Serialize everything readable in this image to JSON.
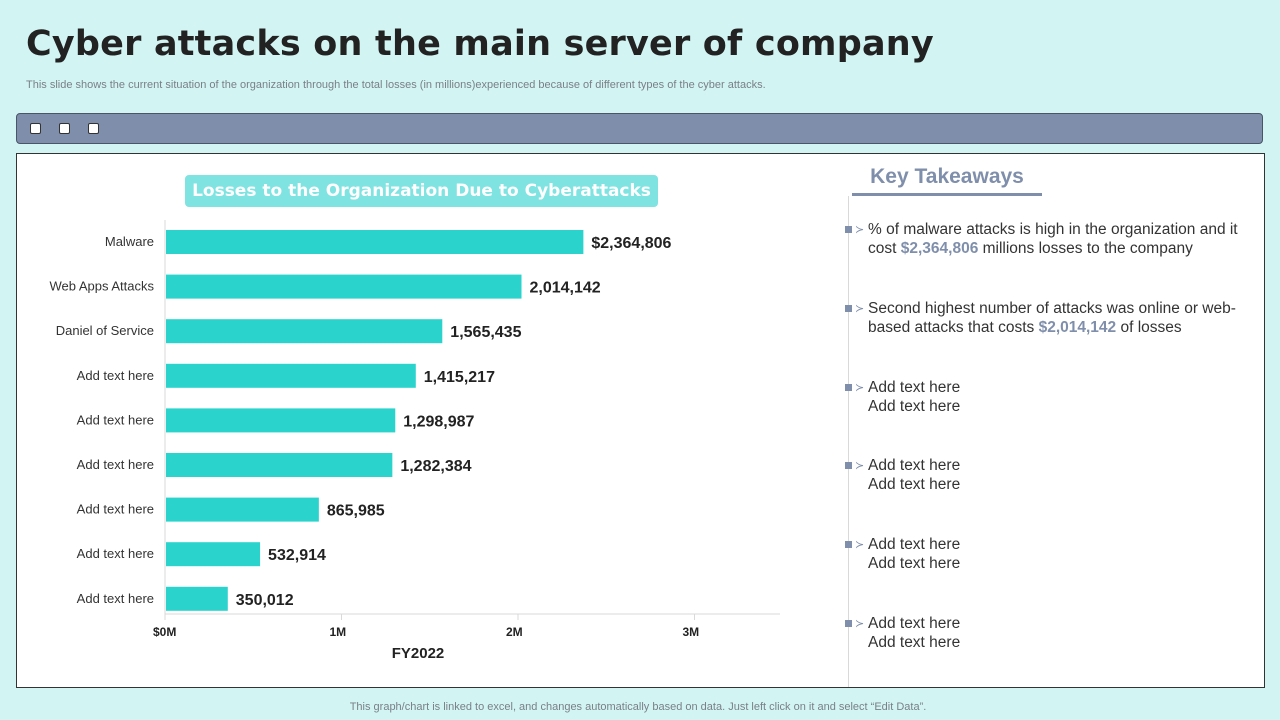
{
  "page": {
    "title": "Cyber attacks on the main server of company",
    "subtitle": "This slide shows the current situation of the organization through the total losses (in millions)experienced because of different types of the cyber attacks.",
    "footer": "This graph/chart is linked to excel,  and changes automatically based on data. Just left click on it and select “Edit Data”."
  },
  "colors": {
    "background": "#d2f5f4",
    "bar": "#2ad3cc",
    "accent": "#7f8fab",
    "chart_title_bg": "#7ee3e1"
  },
  "chart_data": {
    "type": "bar",
    "orientation": "horizontal",
    "title": "Losses to the Organization Due to Cyberattacks",
    "xlabel": "FY2022",
    "ylabel": "",
    "categories": [
      "Malware",
      "Web Apps Attacks",
      "Daniel of Service",
      "Add text here",
      "Add text here",
      "Add text here",
      "Add text here",
      "Add text here",
      "Add text here"
    ],
    "values": [
      2364806,
      2014142,
      1565435,
      1415217,
      1298987,
      1282384,
      865985,
      532914,
      350012
    ],
    "data_labels": [
      "$2,364,806",
      "2,014,142",
      "1,565,435",
      "1,415,217",
      "1,298,987",
      "1,282,384",
      "865,985",
      "532,914",
      "350,012"
    ],
    "xlim": [
      0,
      3500000
    ],
    "xticks": [
      0,
      1000000,
      2000000,
      3000000
    ],
    "xtick_labels": [
      "$0M",
      "1M",
      "2M",
      "3M"
    ],
    "grid": false,
    "legend": "none"
  },
  "takeaways": {
    "title": "Key Takeaways",
    "items": [
      {
        "pre": "% of malware attacks is high in the organization and it cost ",
        "highlight": "$2,364,806",
        "post": " millions losses to the company"
      },
      {
        "pre": "Second highest number  of attacks was online or web-based attacks that  costs ",
        "highlight": "$2,014,142",
        "post": " of losses"
      },
      {
        "line1": "Add text here",
        "line2": "Add text here"
      },
      {
        "line1": "Add text here",
        "line2": "Add text here"
      },
      {
        "line1": "Add text here",
        "line2": "Add text here"
      },
      {
        "line1": "Add text here",
        "line2": "Add text here"
      }
    ]
  }
}
